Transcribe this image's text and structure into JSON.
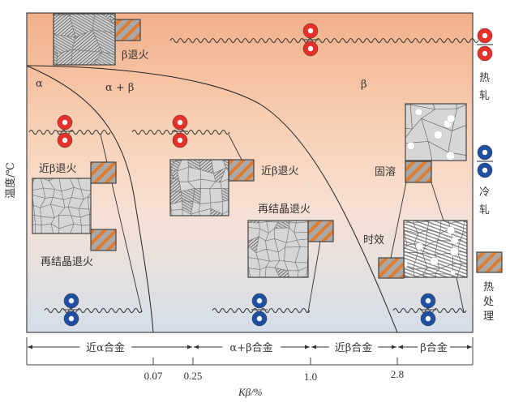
{
  "axes": {
    "y_label": "温度/℃",
    "x_label": "Kβ/%",
    "x_ticks": [
      "0.07",
      "0.25",
      "1.0",
      "2.8"
    ]
  },
  "phase_regions": {
    "alpha": "α",
    "alpha_beta": "α + β",
    "beta": "β"
  },
  "alloy_classes": [
    "近α合金",
    "α+β合金",
    "近β合金",
    "β合金"
  ],
  "process_labels": {
    "beta_anneal": "β退火",
    "near_beta_anneal_left": "近β退火",
    "recrystallize_anneal_left": "再结晶退火",
    "near_beta_anneal_mid": "近β退火",
    "recrystallize_anneal_mid": "再结晶退火",
    "solution": "固溶",
    "aging": "时效"
  },
  "legend": {
    "hot_rolling": [
      "热",
      "轧"
    ],
    "cold_rolling": [
      "冷",
      "轧"
    ],
    "heat_treatment": [
      "热",
      "处",
      "理"
    ]
  },
  "colors": {
    "hot_roll": "#e8302a",
    "cold_roll": "#1f4fa0",
    "hatch_orange": "#e07a2c",
    "hatch_gray": "#a8a8a8",
    "bg_top": "#f3b28c",
    "bg_bottom": "#d5dfea"
  }
}
